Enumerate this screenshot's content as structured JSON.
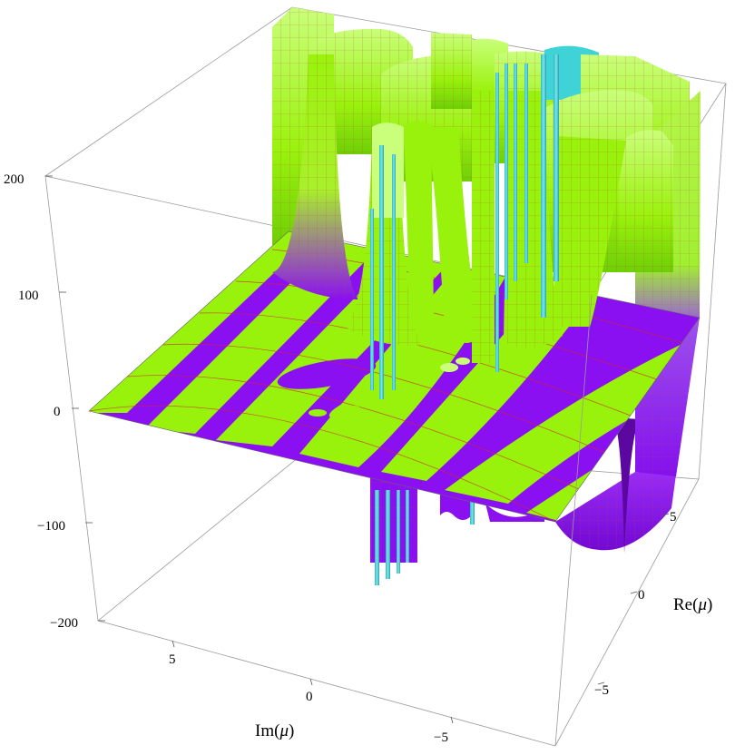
{
  "chart_data": {
    "type": "surface-3d",
    "title": "",
    "xlabel_prefix": "Im(",
    "xlabel_var": "μ",
    "xlabel_suffix": ")",
    "ylabel_prefix": "Re(",
    "ylabel_var": "μ",
    "ylabel_suffix": ")",
    "zlabel": "",
    "x_axis_ticks": [
      5,
      0,
      -5
    ],
    "x_axis_tick_labels": [
      "5",
      "0",
      "−5"
    ],
    "y_axis_ticks": [
      5,
      0,
      -5
    ],
    "y_axis_tick_labels": [
      "5",
      "0",
      "−5"
    ],
    "z_axis_ticks": [
      200,
      100,
      0,
      -100,
      -200
    ],
    "z_axis_tick_labels": [
      "200",
      "100",
      "0",
      "−100",
      "−200"
    ],
    "xlim": [
      -8,
      8
    ],
    "ylim": [
      -8,
      8
    ],
    "zlim": [
      -200,
      200
    ],
    "bounding_box": true,
    "surface_colors": {
      "positive_band": "#99f20b",
      "negative_band": "#8a10f2",
      "mesh_lines": "#cc2222",
      "poles_edge": "#3fd2d6"
    }
  }
}
